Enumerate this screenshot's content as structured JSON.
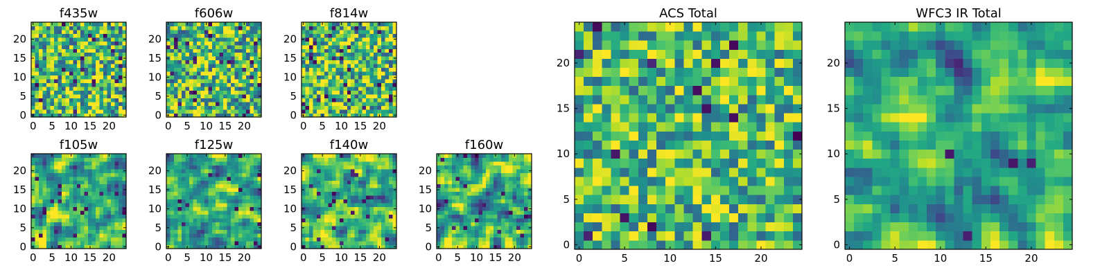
{
  "chart_data": [
    {
      "type": "heatmap",
      "title": "f435w",
      "xticks": [
        0,
        5,
        10,
        15,
        20
      ],
      "yticks": [
        0,
        5,
        10,
        15,
        20
      ],
      "xlim": [
        -0.5,
        24.5
      ],
      "ylim": [
        -0.5,
        24.5
      ],
      "grid_size": 25,
      "colormap": "viridis",
      "grid": false
    },
    {
      "type": "heatmap",
      "title": "f606w",
      "xticks": [
        0,
        5,
        10,
        15,
        20
      ],
      "yticks": [
        0,
        5,
        10,
        15,
        20
      ],
      "xlim": [
        -0.5,
        24.5
      ],
      "ylim": [
        -0.5,
        24.5
      ],
      "grid_size": 25,
      "colormap": "viridis",
      "grid": false
    },
    {
      "type": "heatmap",
      "title": "f814w",
      "xticks": [
        0,
        5,
        10,
        15,
        20
      ],
      "yticks": [
        0,
        5,
        10,
        15,
        20
      ],
      "xlim": [
        -0.5,
        24.5
      ],
      "ylim": [
        -0.5,
        24.5
      ],
      "grid_size": 25,
      "colormap": "viridis",
      "grid": false
    },
    {
      "type": "heatmap",
      "title": "f105w",
      "xticks": [
        0,
        5,
        10,
        15,
        20
      ],
      "yticks": [
        0,
        5,
        10,
        15,
        20
      ],
      "xlim": [
        -0.5,
        24.5
      ],
      "ylim": [
        -0.5,
        24.5
      ],
      "grid_size": 25,
      "colormap": "viridis",
      "grid": false
    },
    {
      "type": "heatmap",
      "title": "f125w",
      "xticks": [
        0,
        5,
        10,
        15,
        20
      ],
      "yticks": [
        0,
        5,
        10,
        15,
        20
      ],
      "xlim": [
        -0.5,
        24.5
      ],
      "ylim": [
        -0.5,
        24.5
      ],
      "grid_size": 25,
      "colormap": "viridis",
      "grid": false
    },
    {
      "type": "heatmap",
      "title": "f140w",
      "xticks": [
        0,
        5,
        10,
        15,
        20
      ],
      "yticks": [
        0,
        5,
        10,
        15,
        20
      ],
      "xlim": [
        -0.5,
        24.5
      ],
      "ylim": [
        -0.5,
        24.5
      ],
      "grid_size": 25,
      "colormap": "viridis",
      "grid": false
    },
    {
      "type": "heatmap",
      "title": "f160w",
      "xticks": [
        0,
        5,
        10,
        15,
        20
      ],
      "yticks": [
        0,
        5,
        10,
        15,
        20
      ],
      "xlim": [
        -0.5,
        24.5
      ],
      "ylim": [
        -0.5,
        24.5
      ],
      "grid_size": 25,
      "colormap": "viridis",
      "grid": false
    },
    {
      "type": "heatmap",
      "title": "ACS Total",
      "xticks": [
        0,
        5,
        10,
        15,
        20
      ],
      "yticks": [
        0,
        5,
        10,
        15,
        20
      ],
      "xlim": [
        -0.5,
        24.5
      ],
      "ylim": [
        -0.5,
        24.5
      ],
      "grid_size": 25,
      "colormap": "viridis",
      "grid": false
    },
    {
      "type": "heatmap",
      "title": "WFC3 IR Total",
      "xticks": [
        0,
        5,
        10,
        15,
        20
      ],
      "yticks": [
        0,
        5,
        10,
        15,
        20
      ],
      "xlim": [
        -0.5,
        24.5
      ],
      "ylim": [
        -0.5,
        24.5
      ],
      "grid_size": 25,
      "colormap": "viridis",
      "grid": false
    }
  ],
  "colors": {
    "viridis": [
      "#440154",
      "#3b528b",
      "#21918c",
      "#5ec962",
      "#fde725"
    ],
    "axes": "#000000",
    "background": "#ffffff"
  }
}
